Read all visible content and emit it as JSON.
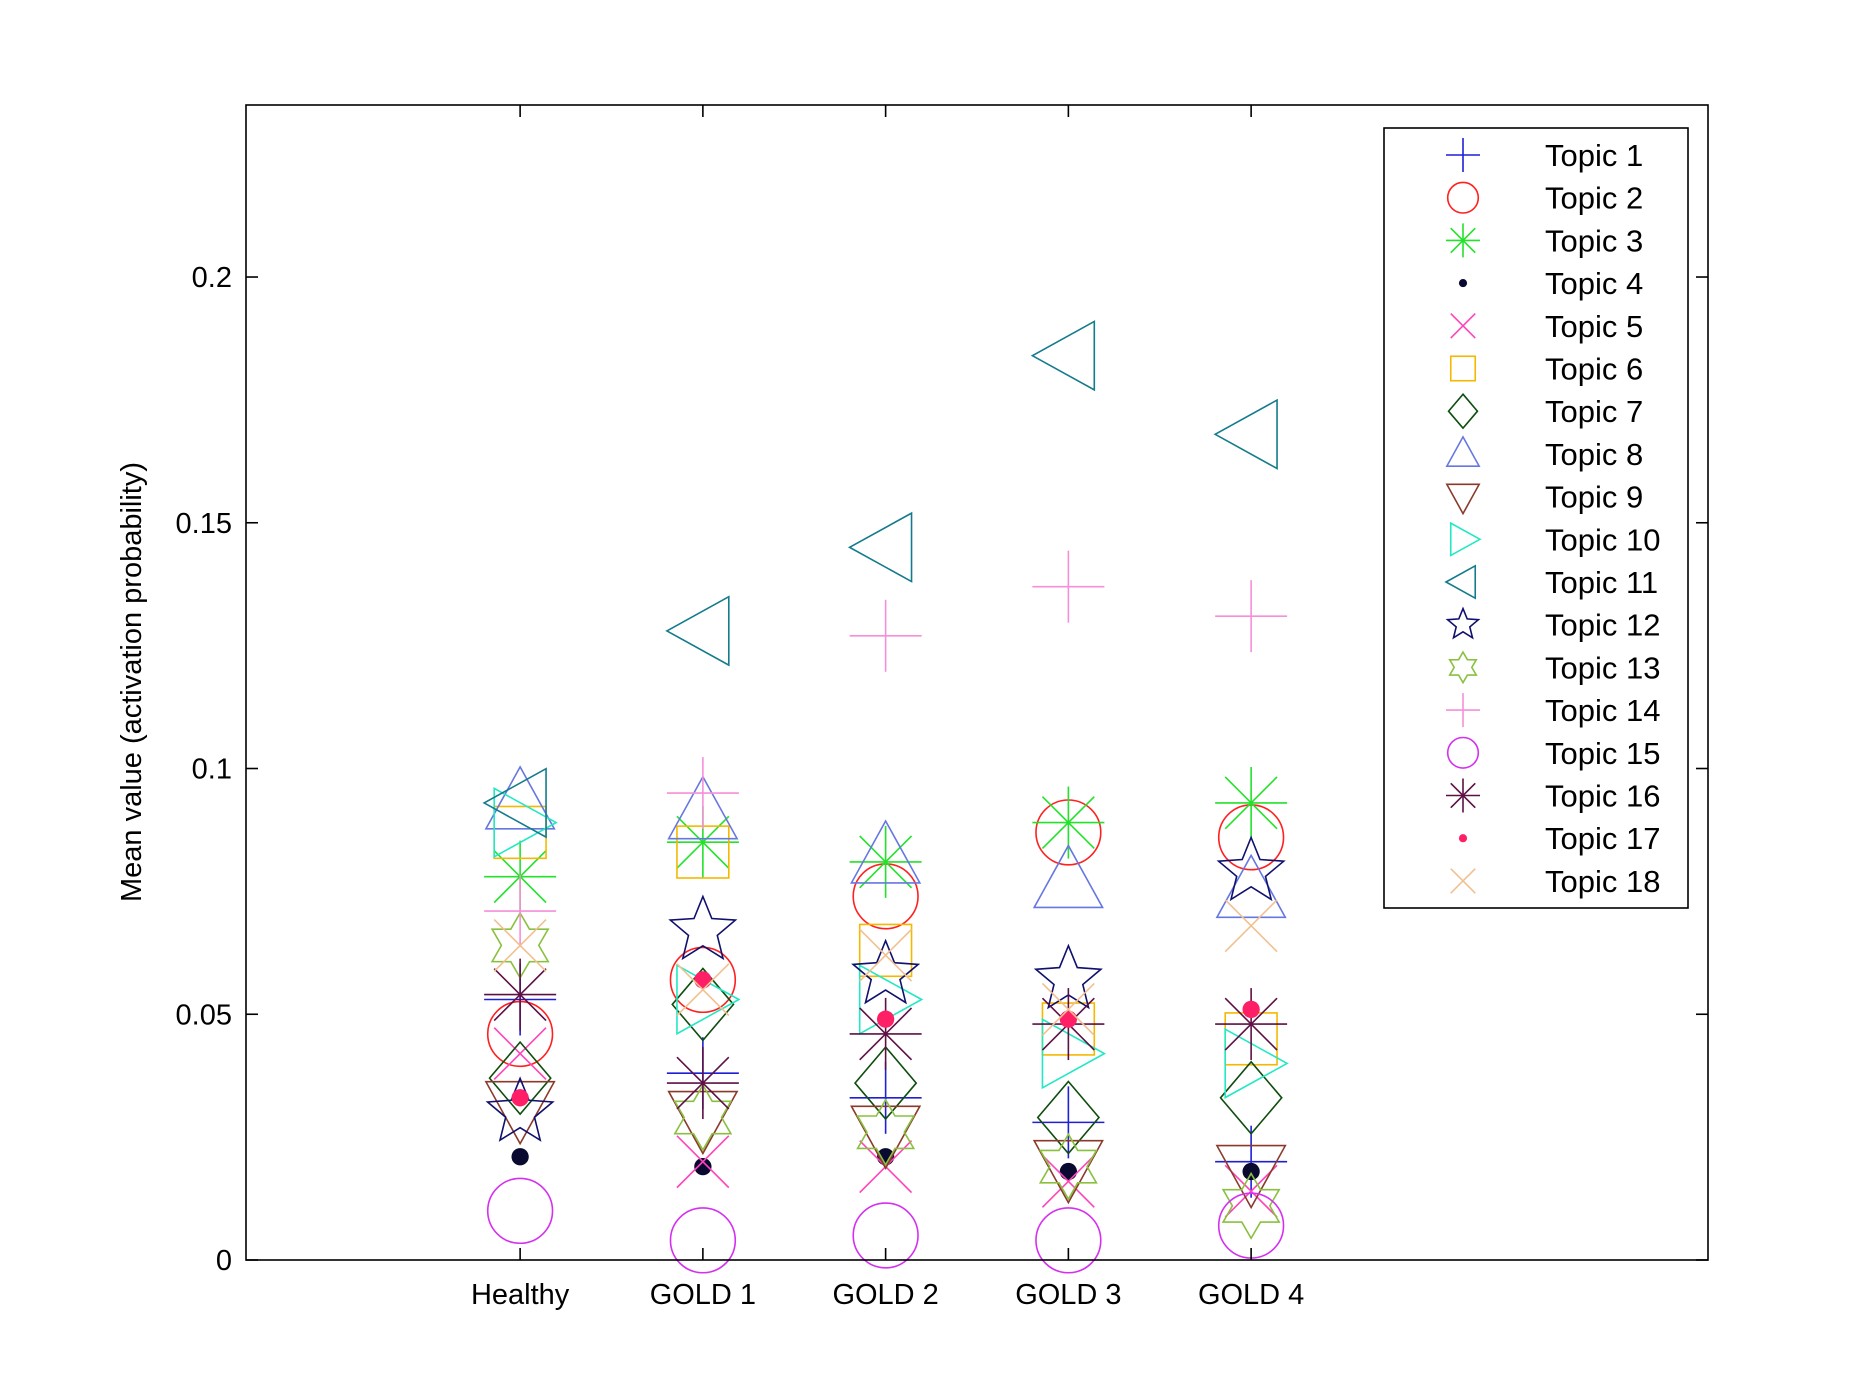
{
  "chart_data": {
    "type": "scatter",
    "title": "",
    "xlabel": "",
    "ylabel": "Mean value (activation probability)",
    "categories": [
      "Healthy",
      "GOLD 1",
      "GOLD 2",
      "GOLD 3",
      "GOLD 4"
    ],
    "xlim": [
      -1.5,
      6.5
    ],
    "ylim": [
      0,
      0.235
    ],
    "yticks": [
      0,
      0.05,
      0.1,
      0.15,
      0.2
    ],
    "ytick_labels": [
      "0",
      "0.05",
      "0.1",
      "0.15",
      "0.2"
    ],
    "grid": false,
    "legend_position": "top-right",
    "series": [
      {
        "name": "Topic 1",
        "marker": "plus",
        "color": "#1f1fd6",
        "values": [
          0.053,
          0.038,
          0.033,
          0.028,
          0.02
        ]
      },
      {
        "name": "Topic 2",
        "marker": "circle",
        "color": "#ff2020",
        "values": [
          0.046,
          0.057,
          0.074,
          0.087,
          0.086
        ]
      },
      {
        "name": "Topic 3",
        "marker": "asterisk",
        "color": "#22e22a",
        "values": [
          0.078,
          0.085,
          0.081,
          0.089,
          0.093
        ]
      },
      {
        "name": "Topic 4",
        "marker": "dot",
        "color": "#0a0a30",
        "values": [
          0.021,
          0.019,
          0.021,
          0.018,
          0.018
        ]
      },
      {
        "name": "Topic 5",
        "marker": "cross",
        "color": "#ff44bb",
        "values": [
          0.042,
          0.02,
          0.019,
          0.016,
          0.014
        ]
      },
      {
        "name": "Topic 6",
        "marker": "square",
        "color": "#f5b800",
        "values": [
          0.087,
          0.083,
          0.063,
          0.047,
          0.045
        ]
      },
      {
        "name": "Topic 7",
        "marker": "diamond",
        "color": "#0f4d0f",
        "values": [
          0.037,
          0.052,
          0.036,
          0.029,
          0.033
        ]
      },
      {
        "name": "Topic 8",
        "marker": "triangle-up",
        "color": "#6677e0",
        "values": [
          0.093,
          0.091,
          0.082,
          0.077,
          0.075
        ]
      },
      {
        "name": "Topic 9",
        "marker": "triangle-down",
        "color": "#8a3a2a",
        "values": [
          0.031,
          0.029,
          0.026,
          0.019,
          0.018
        ]
      },
      {
        "name": "Topic 10",
        "marker": "triangle-right",
        "color": "#22e8c4",
        "values": [
          0.089,
          0.053,
          0.053,
          0.042,
          0.04
        ]
      },
      {
        "name": "Topic 11",
        "marker": "triangle-left",
        "color": "#137b8c",
        "values": [
          0.093,
          0.128,
          0.145,
          0.184,
          0.168
        ]
      },
      {
        "name": "Topic 12",
        "marker": "star",
        "color": "#10106e",
        "values": [
          0.03,
          0.067,
          0.058,
          0.057,
          0.079
        ]
      },
      {
        "name": "Topic 13",
        "marker": "hexagram",
        "color": "#8ac040",
        "values": [
          0.064,
          0.029,
          0.026,
          0.019,
          0.011
        ]
      },
      {
        "name": "Topic 14",
        "marker": "plus",
        "color": "#f58fd8",
        "values": [
          0.071,
          0.095,
          0.127,
          0.137,
          0.131
        ]
      },
      {
        "name": "Topic 15",
        "marker": "circle",
        "color": "#d530f0",
        "values": [
          0.01,
          0.004,
          0.005,
          0.004,
          0.007
        ]
      },
      {
        "name": "Topic 16",
        "marker": "asterisk",
        "color": "#5e1045",
        "values": [
          0.054,
          0.036,
          0.046,
          0.048,
          0.048
        ]
      },
      {
        "name": "Topic 17",
        "marker": "dot",
        "color": "#ff1f66",
        "values": [
          0.033,
          0.057,
          0.049,
          0.049,
          0.051
        ]
      },
      {
        "name": "Topic 18",
        "marker": "cross",
        "color": "#f2c090",
        "values": [
          0.064,
          0.055,
          0.062,
          0.051,
          0.068
        ]
      }
    ]
  }
}
